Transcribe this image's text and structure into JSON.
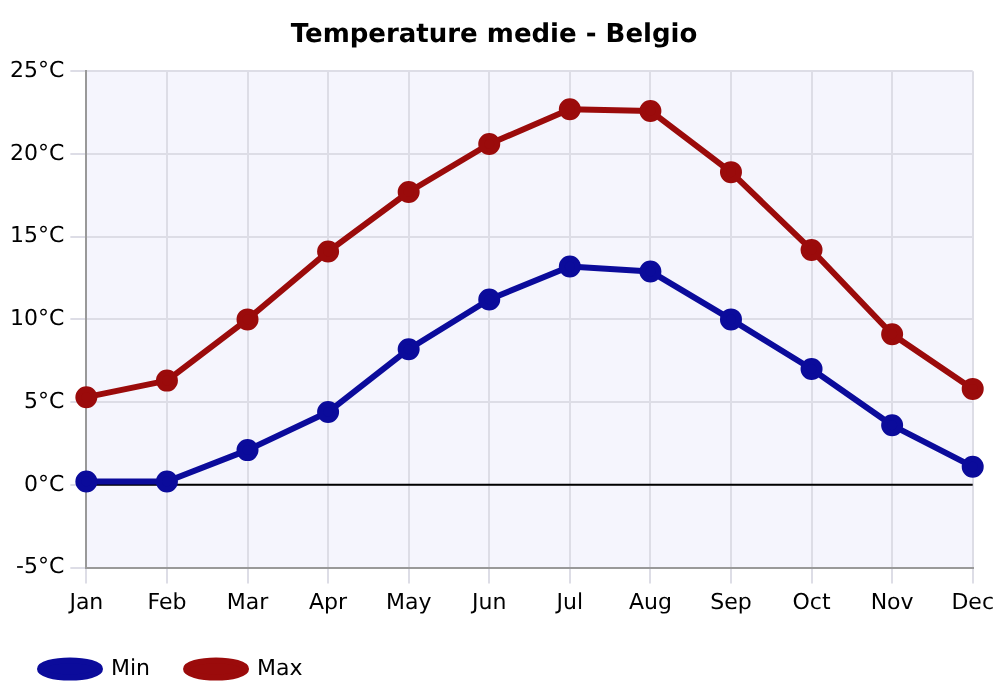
{
  "chart_data": {
    "type": "line",
    "title": "Temperature medie - Belgio",
    "categories": [
      "Jan",
      "Feb",
      "Mar",
      "Apr",
      "May",
      "Jun",
      "Jul",
      "Aug",
      "Sep",
      "Oct",
      "Nov",
      "Dec"
    ],
    "series": [
      {
        "name": "Min",
        "color": "#0b0b9b",
        "values": [
          0.2,
          0.2,
          2.1,
          4.4,
          8.2,
          11.2,
          13.2,
          12.9,
          10.0,
          7.0,
          3.6,
          1.1
        ]
      },
      {
        "name": "Max",
        "color": "#9b0b0b",
        "values": [
          5.3,
          6.3,
          10.0,
          14.1,
          17.7,
          20.6,
          22.7,
          22.6,
          18.9,
          14.2,
          9.1,
          5.8
        ]
      }
    ],
    "ylim": [
      -5,
      25
    ],
    "yticks": [
      {
        "value": -5,
        "label": "-5°C"
      },
      {
        "value": 0,
        "label": "0°C"
      },
      {
        "value": 5,
        "label": "5°C"
      },
      {
        "value": 10,
        "label": "10°C"
      },
      {
        "value": 15,
        "label": "15°C"
      },
      {
        "value": 20,
        "label": "20°C"
      },
      {
        "value": 25,
        "label": "25°C"
      }
    ],
    "ref_lines": [
      {
        "axis": "y",
        "value": 0,
        "color": "#000000"
      }
    ],
    "grid": true,
    "legend": "bottom left",
    "marker": "circle",
    "line_style": "solid"
  }
}
